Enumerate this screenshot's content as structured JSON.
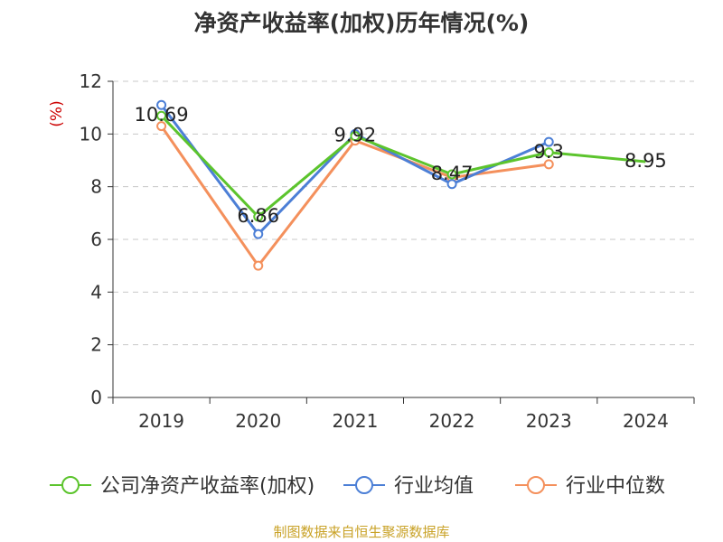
{
  "chart_data": {
    "type": "line",
    "title": "净资产收益率(加权)历年情况(%)",
    "ylabel": "(%)",
    "categories": [
      "2019",
      "2020",
      "2021",
      "2022",
      "2023",
      "2024"
    ],
    "ylim": [
      0,
      12
    ],
    "yticks": [
      0,
      2,
      4,
      6,
      8,
      10,
      12
    ],
    "grid": true,
    "legend_position": "bottom",
    "series": [
      {
        "name": "公司净资产收益率(加权)",
        "color": "#5cc42d",
        "values": [
          10.69,
          6.86,
          9.92,
          8.47,
          9.3,
          8.95
        ],
        "labels": [
          "10.69",
          "6.86",
          "9.92",
          "8.47",
          "9.3",
          "8.95"
        ]
      },
      {
        "name": "行业均值",
        "color": "#4c7fd6",
        "values": [
          11.1,
          6.2,
          10.0,
          8.1,
          9.7,
          null
        ]
      },
      {
        "name": "行业中位数",
        "color": "#f4905c",
        "values": [
          10.3,
          5.0,
          9.75,
          8.35,
          8.85,
          null
        ]
      }
    ]
  },
  "footer": "制图数据来自恒生聚源数据库"
}
